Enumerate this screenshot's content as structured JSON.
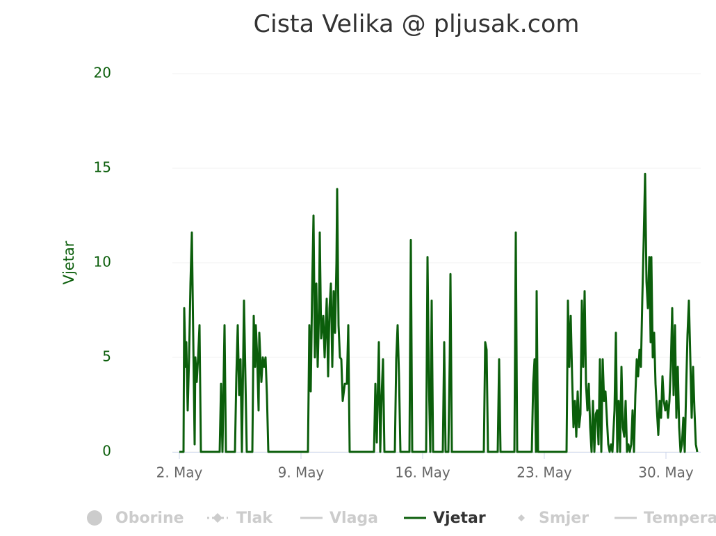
{
  "chart_data": {
    "type": "line",
    "title": "Cista Velika @ pljusak.com",
    "y_label": "Vjetar",
    "xlim": [
      1.6,
      32
    ],
    "xticks": [
      {
        "value": 2,
        "label": "2. May"
      },
      {
        "value": 9,
        "label": "9. May"
      },
      {
        "value": 16,
        "label": "16. May"
      },
      {
        "value": 23,
        "label": "23. May"
      },
      {
        "value": 30,
        "label": "30. May"
      }
    ],
    "ylim": [
      0,
      20
    ],
    "yticks": [
      0,
      5,
      10,
      15,
      20
    ],
    "grid": true,
    "series": [
      {
        "name": "Oborine",
        "symbol": "circle",
        "visible": false
      },
      {
        "name": "Tlak",
        "symbol": "dashed-diamond",
        "visible": false
      },
      {
        "name": "Vlaga",
        "symbol": "line",
        "visible": false
      },
      {
        "name": "Vjetar",
        "symbol": "line",
        "visible": true,
        "color": "#0b5e0b",
        "x": [
          2,
          2.24,
          2.28,
          2.36,
          2.4,
          2.48,
          2.56,
          2.64,
          2.72,
          2.8,
          2.88,
          2.92,
          3,
          3.08,
          3.16,
          3.24,
          4.32,
          4.4,
          4.48,
          4.6,
          4.68,
          5.2,
          5.28,
          5.36,
          5.44,
          5.52,
          5.6,
          5.72,
          5.8,
          5.88,
          6,
          6.2,
          6.28,
          6.36,
          6.4,
          6.48,
          6.56,
          6.6,
          6.72,
          6.8,
          6.88,
          6.96,
          7.04,
          7.12,
          9.4,
          9.48,
          9.56,
          9.64,
          9.72,
          9.8,
          9.88,
          9.96,
          10.04,
          10.08,
          10.16,
          10.28,
          10.36,
          10.48,
          10.56,
          10.64,
          10.72,
          10.8,
          10.88,
          10.96,
          11.04,
          11.08,
          11.16,
          11.24,
          11.32,
          11.4,
          11.52,
          11.64,
          11.72,
          11.8,
          13.2,
          13.28,
          13.36,
          13.48,
          13.56,
          13.64,
          13.72,
          13.8,
          14.4,
          14.48,
          14.56,
          14.64,
          14.72,
          15.24,
          15.32,
          15.4,
          16.2,
          16.28,
          16.36,
          16.44,
          16.52,
          16.6,
          17.16,
          17.24,
          17.32,
          17.48,
          17.56,
          17.6,
          17.68,
          19.52,
          19.6,
          19.68,
          19.76,
          20.32,
          20.4,
          20.48,
          21.28,
          21.36,
          21.44,
          22.28,
          22.36,
          22.44,
          22.52,
          22.56,
          22.64,
          24.28,
          24.36,
          24.44,
          24.52,
          24.6,
          24.68,
          24.76,
          24.84,
          24.92,
          25,
          25.08,
          25.16,
          25.24,
          25.32,
          25.4,
          25.48,
          25.56,
          25.64,
          25.72,
          25.8,
          25.88,
          25.96,
          26.04,
          26.12,
          26.2,
          26.28,
          26.36,
          26.44,
          26.52,
          26.6,
          26.68,
          26.76,
          26.84,
          26.92,
          27.04,
          27.12,
          27.2,
          27.28,
          27.36,
          27.44,
          27.52,
          27.6,
          27.68,
          27.76,
          27.84,
          27.92,
          28,
          28.08,
          28.16,
          28.24,
          28.32,
          28.4,
          28.48,
          28.56,
          28.64,
          28.72,
          28.8,
          28.88,
          28.96,
          29.04,
          29.12,
          29.16,
          29.24,
          29.32,
          29.4,
          29.48,
          29.56,
          29.64,
          29.72,
          29.8,
          29.88,
          29.96,
          30.04,
          30.12,
          30.2,
          30.28,
          30.36,
          30.44,
          30.52,
          30.6,
          30.68,
          30.76,
          30.84,
          30.92,
          31,
          31.08,
          31.16,
          31.24,
          31.32,
          31.4,
          31.48,
          31.56,
          31.64,
          31.72,
          31.8
        ],
        "values": [
          0,
          0,
          7.6,
          4.5,
          5.8,
          2.2,
          5,
          8.9,
          11.6,
          6,
          0.4,
          5,
          3.7,
          5,
          6.7,
          0,
          0,
          3.6,
          0,
          6.7,
          0,
          0,
          4,
          6.7,
          3,
          4.9,
          0,
          8,
          4,
          0,
          0,
          0,
          7.2,
          4.5,
          6.7,
          5,
          2.2,
          6.3,
          3.7,
          5,
          4.5,
          5,
          3,
          0,
          0,
          6.7,
          3.2,
          8.5,
          12.5,
          5,
          8.9,
          4.5,
          7.6,
          11.6,
          6,
          7.2,
          5,
          8.1,
          4,
          7.6,
          8.9,
          4.5,
          8.5,
          6.3,
          10,
          13.9,
          6.7,
          5,
          4.9,
          2.7,
          3.6,
          3.6,
          6.7,
          0,
          0,
          3.6,
          0.5,
          5.8,
          0,
          3,
          4.9,
          0,
          0,
          4.9,
          6.7,
          4,
          0,
          0,
          11.2,
          0,
          0,
          10.3,
          3.7,
          0,
          8,
          0,
          0,
          5.8,
          0,
          0,
          5,
          9.4,
          0,
          0,
          5.8,
          5.4,
          0,
          0,
          4.9,
          0,
          0,
          11.6,
          0,
          0,
          3.6,
          4.9,
          0,
          8.5,
          0,
          0,
          8,
          4.5,
          7.2,
          4,
          1.3,
          2.7,
          0.8,
          3.2,
          1.3,
          2,
          8,
          4.5,
          8.5,
          3.6,
          2.2,
          3.6,
          1.3,
          0,
          2.7,
          0,
          2,
          2.2,
          0.4,
          4.9,
          0,
          4.9,
          2.7,
          3.2,
          1.8,
          0.4,
          0,
          0.4,
          0,
          2.2,
          6.3,
          0,
          2.7,
          0,
          4.5,
          1.3,
          0.8,
          2.7,
          0,
          0.4,
          0,
          0.4,
          2.2,
          0,
          3,
          4.9,
          4,
          5.4,
          4.5,
          8.1,
          11.2,
          14.7,
          9,
          7.6,
          10.3,
          5.8,
          10.3,
          5,
          6.3,
          3.6,
          2.2,
          0.9,
          2.7,
          1.8,
          4,
          2.7,
          2.2,
          2.7,
          1.8,
          2.7,
          4.5,
          7.6,
          3,
          6.7,
          1.8,
          4.5,
          1.3,
          0,
          0.4,
          1.8,
          0,
          3.2,
          6.2,
          8,
          5,
          1.8,
          4.5,
          2.2,
          0.4,
          0
        ]
      },
      {
        "name": "Smjer",
        "symbol": "diamond",
        "visible": false
      },
      {
        "name": "Temperatura",
        "symbol": "line",
        "visible": false
      }
    ]
  }
}
